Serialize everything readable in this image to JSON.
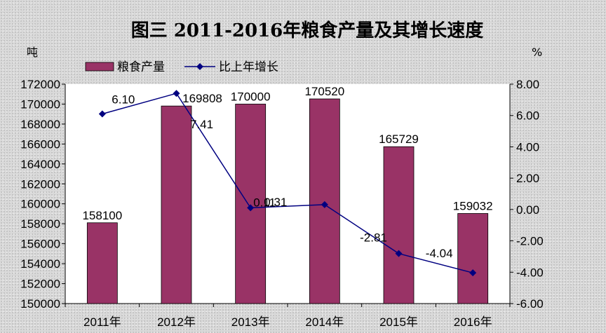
{
  "chart_data": {
    "type": "bar",
    "title": "图三  2011-2016年粮食产量及其增长速度",
    "categories": [
      "2011年",
      "2012年",
      "2013年",
      "2014年",
      "2015年",
      "2016年"
    ],
    "y_left_unit": "吨",
    "y_right_unit": "%",
    "y_left_range": [
      150000,
      172000
    ],
    "y_left_ticks": [
      "150000",
      "152000",
      "154000",
      "156000",
      "158000",
      "160000",
      "162000",
      "164000",
      "166000",
      "168000",
      "170000",
      "172000"
    ],
    "y_right_range": [
      -6,
      8
    ],
    "y_right_ticks": [
      "-6.00",
      "-4.00",
      "-2.00",
      "0.00",
      "2.00",
      "4.00",
      "6.00",
      "8.00"
    ],
    "grid": false,
    "legend_position": "top-left",
    "series": [
      {
        "name": "粮食产量",
        "type": "bar",
        "axis": "left",
        "color": "#993366",
        "values": [
          158100,
          169808,
          170000,
          170520,
          165729,
          159032
        ],
        "labels": [
          "158100",
          "169808",
          "170000",
          "170520",
          "165729",
          "159032"
        ]
      },
      {
        "name": "比上年增长",
        "type": "line",
        "axis": "right",
        "color": "#000080",
        "values": [
          6.1,
          7.41,
          0.11,
          0.31,
          -2.81,
          -4.04
        ],
        "labels": [
          "6.10",
          "7.41",
          "0.11",
          "0.31",
          "-2.81",
          "-4.04"
        ]
      }
    ]
  }
}
